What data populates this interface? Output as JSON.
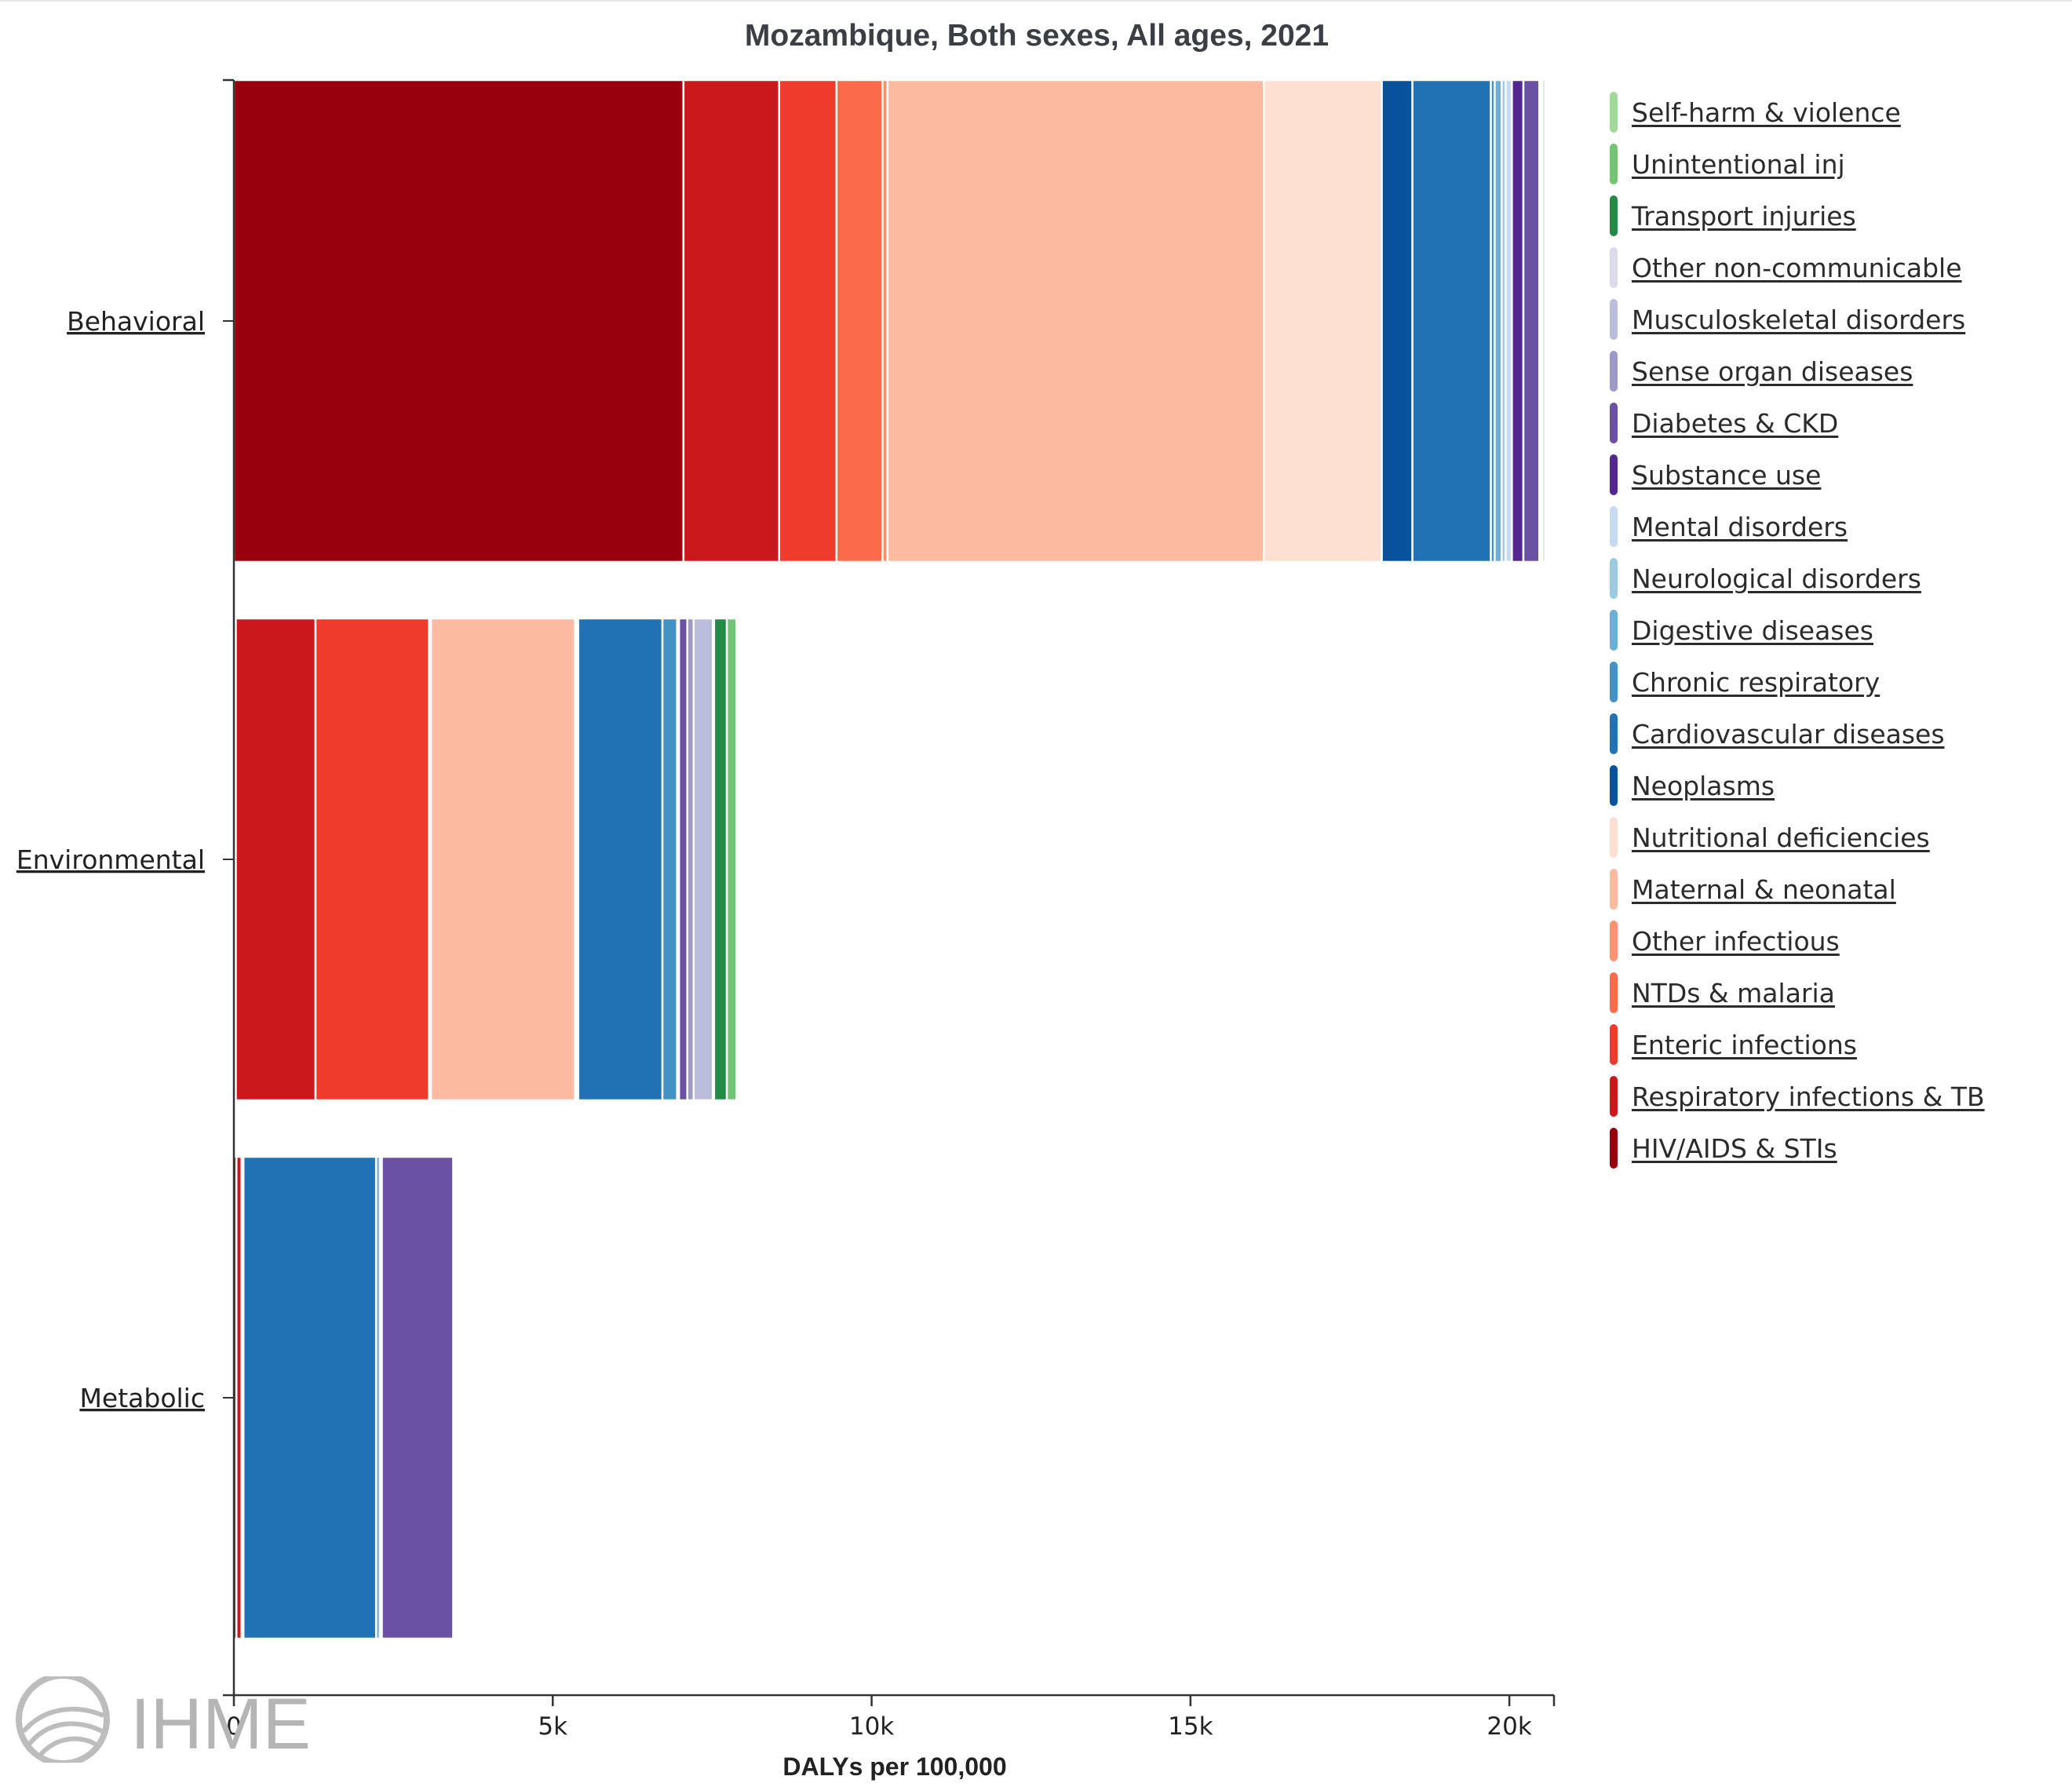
{
  "chart_data": {
    "type": "bar",
    "orientation": "horizontal",
    "stacked": true,
    "title": "Mozambique, Both sexes, All ages, 2021",
    "xlabel": "DALYs per 100,000",
    "ylabel": "",
    "xlim": [
      0,
      20700
    ],
    "x_ticks": [
      {
        "value": 0,
        "label": "0"
      },
      {
        "value": 5000,
        "label": "5k"
      },
      {
        "value": 10000,
        "label": "10k"
      },
      {
        "value": 15000,
        "label": "15k"
      },
      {
        "value": 20000,
        "label": "20k"
      }
    ],
    "grid": false,
    "legend_position": "right",
    "categories": [
      "Behavioral",
      "Environmental",
      "Metabolic"
    ],
    "series": [
      {
        "name": "HIV/AIDS & STIs",
        "color": "#99000d",
        "values": [
          7050,
          30,
          40
        ]
      },
      {
        "name": "Respiratory infections & TB",
        "color": "#cb181d",
        "values": [
          1500,
          1250,
          80
        ]
      },
      {
        "name": "Enteric infections",
        "color": "#ef3b2c",
        "values": [
          900,
          1780,
          30
        ]
      },
      {
        "name": "NTDs & malaria",
        "color": "#fb6a4a",
        "values": [
          720,
          20,
          0
        ]
      },
      {
        "name": "Other infectious",
        "color": "#fc9272",
        "values": [
          80,
          10,
          0
        ]
      },
      {
        "name": "Maternal & neonatal",
        "color": "#fcbba1",
        "values": [
          5900,
          2260,
          0
        ]
      },
      {
        "name": "Nutritional deficiencies",
        "color": "#fee0d2",
        "values": [
          1850,
          30,
          0
        ]
      },
      {
        "name": "Neoplasms",
        "color": "#08519c",
        "values": [
          480,
          20,
          0
        ]
      },
      {
        "name": "Cardiovascular diseases",
        "color": "#2171b5",
        "values": [
          1230,
          1320,
          2080
        ]
      },
      {
        "name": "Chronic respiratory",
        "color": "#4292c6",
        "values": [
          60,
          230,
          0
        ]
      },
      {
        "name": "Digestive diseases",
        "color": "#6baed6",
        "values": [
          110,
          10,
          60
        ]
      },
      {
        "name": "Neurological disorders",
        "color": "#9ecae1",
        "values": [
          60,
          20,
          30
        ]
      },
      {
        "name": "Mental disorders",
        "color": "#c6dbef",
        "values": [
          100,
          0,
          0
        ]
      },
      {
        "name": "Substance use",
        "color": "#54278f",
        "values": [
          180,
          0,
          0
        ]
      },
      {
        "name": "Diabetes & CKD",
        "color": "#6a51a3",
        "values": [
          250,
          130,
          1120
        ]
      },
      {
        "name": "Sense organ diseases",
        "color": "#9e9ac8",
        "values": [
          10,
          100,
          10
        ]
      },
      {
        "name": "Musculoskeletal disorders",
        "color": "#bcbddc",
        "values": [
          10,
          300,
          0
        ]
      },
      {
        "name": "Other non-communicable",
        "color": "#dadaeb",
        "values": [
          20,
          20,
          0
        ]
      },
      {
        "name": "Transport injuries",
        "color": "#238b45",
        "values": [
          0,
          200,
          0
        ]
      },
      {
        "name": "Unintentional inj",
        "color": "#74c476",
        "values": [
          10,
          150,
          0
        ]
      },
      {
        "name": "Self-harm & violence",
        "color": "#a1d99b",
        "values": [
          40,
          0,
          0
        ]
      }
    ]
  },
  "legend_order": [
    20,
    19,
    18,
    17,
    16,
    15,
    14,
    13,
    12,
    11,
    10,
    9,
    8,
    7,
    6,
    5,
    4,
    3,
    2,
    1,
    0
  ],
  "logo": {
    "icon": "ihme-logo-icon",
    "text": "IHME",
    "color": "#b5b5b5"
  }
}
